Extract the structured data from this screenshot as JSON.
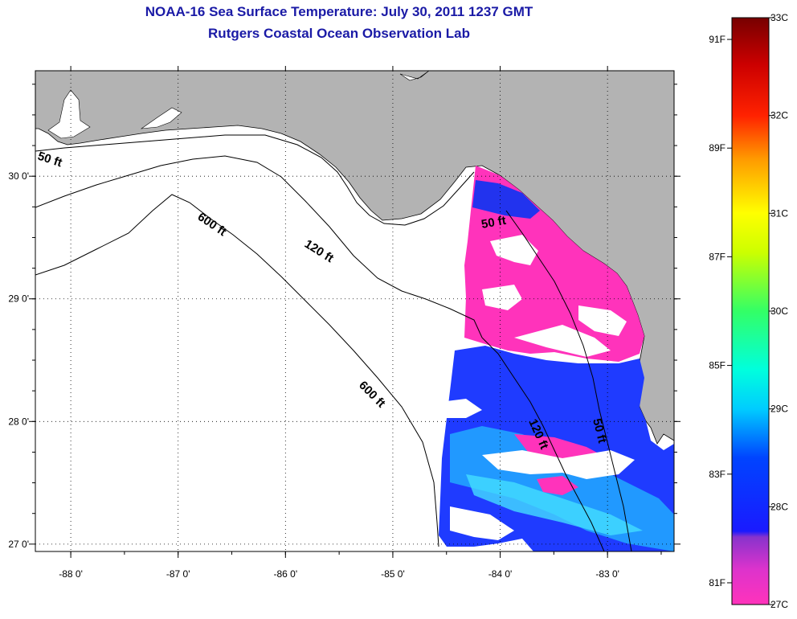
{
  "title": {
    "line1": "NOAA-16 Sea Surface Temperature:  July 30, 2011 1237 GMT",
    "line2": "Rutgers Coastal Ocean Observation Lab"
  },
  "axes": {
    "lon_ticks": [
      {
        "value": -88,
        "label": "-88 0'"
      },
      {
        "value": -87,
        "label": "-87 0'"
      },
      {
        "value": -86,
        "label": "-86 0'"
      },
      {
        "value": -85,
        "label": "-85 0'"
      },
      {
        "value": -84,
        "label": "-84 0'"
      },
      {
        "value": -83,
        "label": "-83 0'"
      }
    ],
    "lat_ticks": [
      {
        "value": 30,
        "label": "30 0'"
      },
      {
        "value": 29,
        "label": "29 0'"
      },
      {
        "value": 28,
        "label": "28 0'"
      },
      {
        "value": 27,
        "label": "27 0'"
      }
    ],
    "lon_range": [
      -88.33,
      -82.38
    ],
    "lat_range": [
      26.94,
      30.86
    ],
    "grid": "dotted"
  },
  "contours": [
    {
      "label": "50 ft"
    },
    {
      "label": "120 ft"
    },
    {
      "label": "600 ft"
    },
    {
      "label": "50 ft"
    },
    {
      "label": "600 ft"
    },
    {
      "label": "120 ft"
    },
    {
      "label": "50 ft"
    }
  ],
  "colorbar": {
    "celsius": [
      {
        "value": 33,
        "label": "33C"
      },
      {
        "value": 32,
        "label": "32C"
      },
      {
        "value": 31,
        "label": "31C"
      },
      {
        "value": 30,
        "label": "30C"
      },
      {
        "value": 29,
        "label": "29C"
      },
      {
        "value": 28,
        "label": "28C"
      },
      {
        "value": 27,
        "label": "27C"
      }
    ],
    "fahrenheit": [
      {
        "value": 91,
        "label": "91F"
      },
      {
        "value": 89,
        "label": "89F"
      },
      {
        "value": 87,
        "label": "87F"
      },
      {
        "value": 85,
        "label": "85F"
      },
      {
        "value": 83,
        "label": "83F"
      },
      {
        "value": 81,
        "label": "81F"
      }
    ],
    "range_c": [
      27,
      33
    ],
    "colors": [
      "#ff33bb",
      "#9933cc",
      "#1a1aff",
      "#00aaff",
      "#00ffff",
      "#00ff88",
      "#66ff00",
      "#ffff00",
      "#ff9900",
      "#ff0000",
      "#aa0000",
      "#660000"
    ]
  },
  "colors": {
    "land": "#b3b3b3",
    "ocean": "#ffffff",
    "title": "#1a1aa6"
  }
}
